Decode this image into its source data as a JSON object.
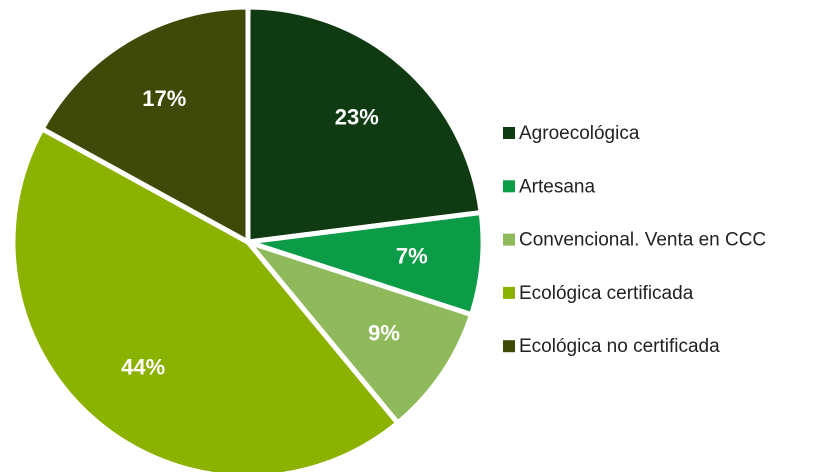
{
  "chart_data": {
    "type": "pie",
    "categories": [
      "Agroecológica",
      "Artesana",
      "Convencional. Venta en CCC",
      "Ecológica certificada",
      "Ecológica no certificada"
    ],
    "values": [
      23,
      7,
      9,
      44,
      17
    ],
    "value_labels": [
      "23%",
      "7%",
      "9%",
      "44%",
      "17%"
    ],
    "colors": [
      "#0f3a12",
      "#0c9c47",
      "#8fba5c",
      "#8cb200",
      "#3f4a08"
    ],
    "legend": "right"
  }
}
